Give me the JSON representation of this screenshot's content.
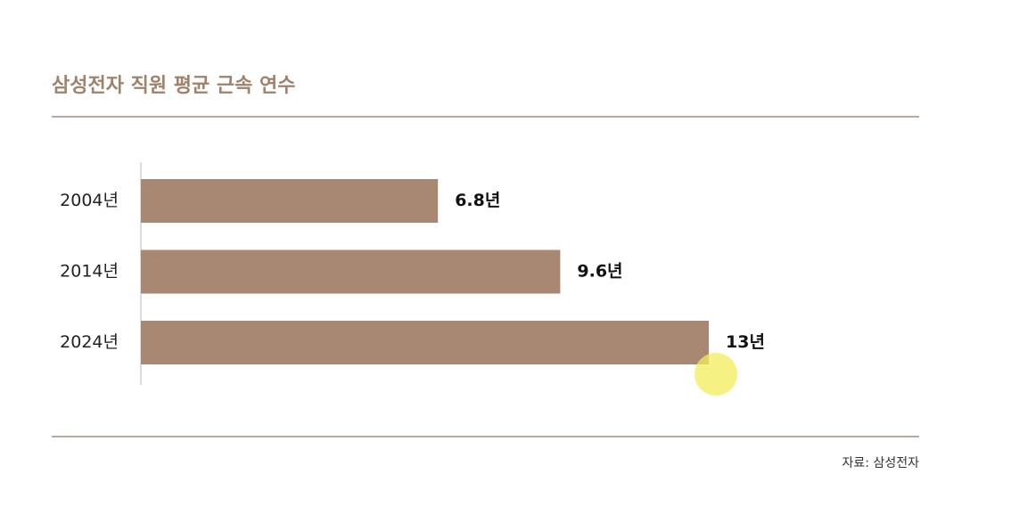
{
  "chart_data": {
    "type": "bar",
    "orientation": "horizontal",
    "title": "삼성전자 직원 평균 근속 연수",
    "categories": [
      "2004년",
      "2014년",
      "2024년"
    ],
    "values": [
      6.8,
      9.6,
      13
    ],
    "value_labels": [
      "6.8년",
      "9.6년",
      "13년"
    ],
    "color": "#a88872",
    "source": "자료: 삼성전자"
  }
}
